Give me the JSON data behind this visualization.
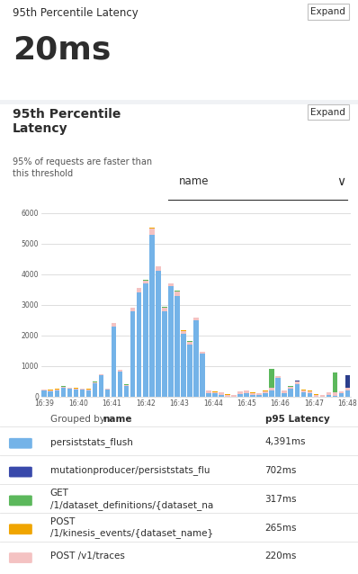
{
  "title_top": "95th Percentile Latency",
  "expand_btn": "Expand",
  "big_number": "20ms",
  "chart_title": "95th Percentile\nLatency",
  "chart_subtitle": "95% of requests are faster than\nthis threshold",
  "dropdown_label": "name",
  "grouped_by_label": "Grouped by ",
  "grouped_by_bold": "name",
  "col_header_name": "p95 Latency",
  "yticks": [
    0,
    1000,
    2000,
    3000,
    4000,
    5000,
    6000
  ],
  "xtick_labels": [
    "16:39",
    "16:40",
    "16:41",
    "16:42",
    "16:43",
    "16:44",
    "16:45",
    "16:46",
    "16:47",
    "16:48"
  ],
  "bar_heights_blue": [
    200,
    180,
    210,
    300,
    250,
    240,
    220,
    210,
    450,
    700,
    220,
    2300,
    810,
    340,
    2800,
    3400,
    3700,
    5300,
    4100,
    2800,
    3600,
    3300,
    2050,
    1700,
    2500,
    1400,
    100,
    100,
    50,
    0,
    0,
    80,
    100,
    60,
    50,
    100,
    200,
    600,
    100,
    250,
    400,
    150,
    100,
    0,
    0,
    50,
    30,
    100,
    200
  ],
  "bar_heights_pink": [
    30,
    30,
    30,
    30,
    30,
    30,
    30,
    30,
    30,
    30,
    30,
    100,
    60,
    50,
    100,
    150,
    100,
    200,
    150,
    120,
    100,
    150,
    100,
    100,
    80,
    60,
    100,
    50,
    80,
    60,
    50,
    80,
    100,
    60,
    50,
    80,
    100,
    60,
    100,
    80,
    100,
    60,
    80,
    60,
    50,
    80,
    100,
    60,
    80
  ],
  "bar_heights_green": [
    5,
    5,
    5,
    5,
    5,
    5,
    5,
    5,
    5,
    5,
    5,
    5,
    5,
    5,
    5,
    5,
    5,
    5,
    5,
    5,
    5,
    5,
    5,
    5,
    5,
    5,
    5,
    5,
    5,
    5,
    5,
    5,
    5,
    5,
    5,
    5,
    600,
    5,
    5,
    5,
    5,
    5,
    5,
    5,
    5,
    5,
    650,
    5,
    5
  ],
  "bar_heights_orange": [
    5,
    5,
    5,
    5,
    5,
    5,
    5,
    5,
    5,
    5,
    5,
    5,
    5,
    5,
    5,
    5,
    5,
    5,
    5,
    5,
    5,
    5,
    5,
    5,
    5,
    5,
    5,
    5,
    5,
    5,
    5,
    5,
    5,
    5,
    5,
    5,
    5,
    5,
    5,
    5,
    5,
    5,
    5,
    5,
    5,
    5,
    5,
    5,
    5
  ],
  "bar_heights_navy": [
    5,
    5,
    5,
    5,
    5,
    5,
    5,
    5,
    5,
    5,
    5,
    5,
    5,
    5,
    5,
    5,
    5,
    5,
    5,
    5,
    5,
    5,
    5,
    5,
    5,
    5,
    5,
    5,
    5,
    5,
    5,
    5,
    5,
    5,
    5,
    5,
    5,
    5,
    5,
    5,
    5,
    5,
    5,
    5,
    5,
    5,
    5,
    5,
    400
  ],
  "color_blue": "#74b3e8",
  "color_pink": "#f4c2c2",
  "color_green": "#5cb85c",
  "color_orange": "#f0a500",
  "color_navy": "#2c3e8c",
  "color_darkblue": "#3949ab",
  "table_rows": [
    {
      "color": "#74b3e8",
      "name": "persiststats_flush",
      "value": "4,391ms"
    },
    {
      "color": "#3949ab",
      "name": "mutationproducer/persiststats_flu",
      "value": "702ms"
    },
    {
      "color": "#5cb85c",
      "name": "GET\n/1/dataset_definitions/{dataset_na",
      "value": "317ms"
    },
    {
      "color": "#f0a500",
      "name": "POST\n/1/kinesis_events/{dataset_name}",
      "value": "265ms"
    },
    {
      "color": "#f4c2c2",
      "name": "POST /v1/traces",
      "value": "220ms"
    }
  ],
  "bg_color": "#ffffff",
  "panel_bg": "#f0f2f5",
  "divider_color": "#e0e0e0",
  "text_color": "#2d2d2d",
  "subtle_text": "#555555",
  "axis_color": "#d0d0d0"
}
